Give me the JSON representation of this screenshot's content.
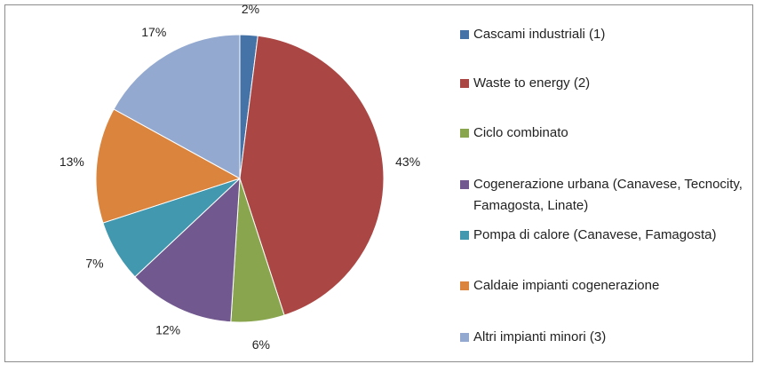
{
  "chart_data": {
    "type": "pie",
    "categories": [
      "Cascami industriali (1)",
      "Waste to energy  (2)",
      "Ciclo combinato",
      "Cogenerazione urbana (Canavese, Tecnocity, Famagosta, Linate)",
      "Pompa di calore (Canavese, Famagosta)",
      "Caldaie impianti cogenerazione",
      "Altri impianti minori (3)"
    ],
    "values": [
      2,
      43,
      6,
      12,
      7,
      13,
      17
    ],
    "value_labels": [
      "2%",
      "43%",
      "6%",
      "12%",
      "7%",
      "13%",
      "17%"
    ],
    "colors": [
      "#4572a7",
      "#aa4643",
      "#89a54e",
      "#71588f",
      "#4198af",
      "#db843d",
      "#93a9cf"
    ],
    "legend": "right"
  }
}
